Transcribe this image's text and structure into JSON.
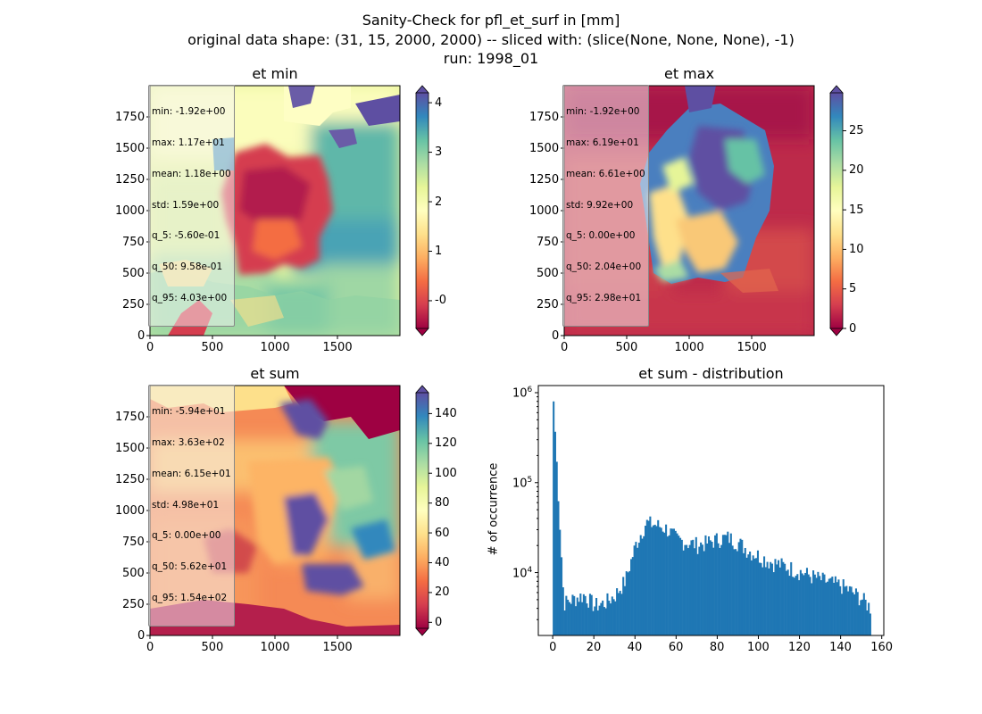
{
  "figure": {
    "title_lines": [
      "Sanity-Check for pfl_et_surf in [mm]",
      "original data shape: (31, 15, 2000, 2000) -- sliced with: (slice(None, None, None), -1)",
      "run: 1998_01"
    ]
  },
  "panels": [
    {
      "title": "et min",
      "stats": [
        "min: -1.92e+00",
        "max: 1.17e+01",
        "mean: 1.18e+00",
        "std: 1.59e+00",
        "q_5: -5.60e-01",
        "q_50: 9.58e-01",
        "q_95: 4.03e+00"
      ],
      "colorbar": {
        "cmap": "Spectral",
        "vmin": -0.56,
        "vmax": 4.2,
        "ticks": [
          "-0",
          "1",
          "2",
          "3",
          "4"
        ],
        "tick_values": [
          0,
          1,
          2,
          3,
          4
        ],
        "extend": "both"
      }
    },
    {
      "title": "et max",
      "stats": [
        "min: -1.92e+00",
        "max: 6.19e+01",
        "mean: 6.61e+00",
        "std: 9.92e+00",
        "q_5: 0.00e+00",
        "q_50: 2.04e+00",
        "q_95: 2.98e+01"
      ],
      "colorbar": {
        "cmap": "Spectral",
        "vmin": 0,
        "vmax": 29.8,
        "ticks": [
          "0",
          "5",
          "10",
          "15",
          "20",
          "25"
        ],
        "tick_values": [
          0,
          5,
          10,
          15,
          20,
          25
        ],
        "extend": "both"
      }
    },
    {
      "title": "et sum",
      "stats": [
        "min: -5.94e+01",
        "max: 3.63e+02",
        "mean: 6.15e+01",
        "std: 4.98e+01",
        "q_5: 0.00e+00",
        "q_50: 5.62e+01",
        "q_95: 1.54e+02"
      ],
      "colorbar": {
        "cmap": "Spectral",
        "vmin": -4,
        "vmax": 154,
        "ticks": [
          "0",
          "20",
          "40",
          "60",
          "80",
          "100",
          "120",
          "140"
        ],
        "tick_values": [
          0,
          20,
          40,
          60,
          80,
          100,
          120,
          140
        ],
        "extend": "both"
      }
    }
  ],
  "map_axes": {
    "xticks": [
      "0",
      "500",
      "1000",
      "1500"
    ],
    "xtick_values": [
      0,
      500,
      1000,
      1500
    ],
    "yticks": [
      "0",
      "250",
      "500",
      "750",
      "1000",
      "1250",
      "1500",
      "1750"
    ],
    "ytick_values": [
      0,
      250,
      500,
      750,
      1000,
      1250,
      1500,
      1750
    ],
    "xlim": [
      0,
      2000
    ],
    "ylim": [
      0,
      2000
    ]
  },
  "chart_data": {
    "type": "bar",
    "title": "et sum - distribution",
    "xlabel": "",
    "ylabel": "# of occurrence",
    "yscale": "log",
    "xlim": [
      -7,
      161
    ],
    "ylim": [
      2000,
      1200000
    ],
    "xticks": [
      "0",
      "20",
      "40",
      "60",
      "80",
      "100",
      "120",
      "140",
      "160"
    ],
    "xtick_values": [
      0,
      20,
      40,
      60,
      80,
      100,
      120,
      140,
      160
    ],
    "yticks": [
      "10",
      "10",
      "10"
    ],
    "ytick_exponents": [
      "4",
      "5",
      "6"
    ],
    "ytick_values": [
      10000,
      100000,
      1000000
    ],
    "bin_width": 0.77,
    "color": "#1f77b4",
    "x": [
      0,
      5,
      10,
      15,
      20,
      25,
      30,
      35,
      40,
      45,
      50,
      55,
      60,
      65,
      70,
      75,
      80,
      85,
      90,
      95,
      100,
      105,
      110,
      115,
      120,
      125,
      130,
      135,
      140,
      145,
      150,
      154
    ],
    "y": [
      800000,
      4500,
      5000,
      5500,
      4200,
      4500,
      5500,
      8000,
      20000,
      35000,
      33000,
      30000,
      23000,
      21000,
      20000,
      21000,
      23000,
      24000,
      21000,
      17000,
      15000,
      13000,
      12000,
      11000,
      10000,
      9000,
      8200,
      7500,
      7000,
      6000,
      5000,
      4000
    ]
  }
}
